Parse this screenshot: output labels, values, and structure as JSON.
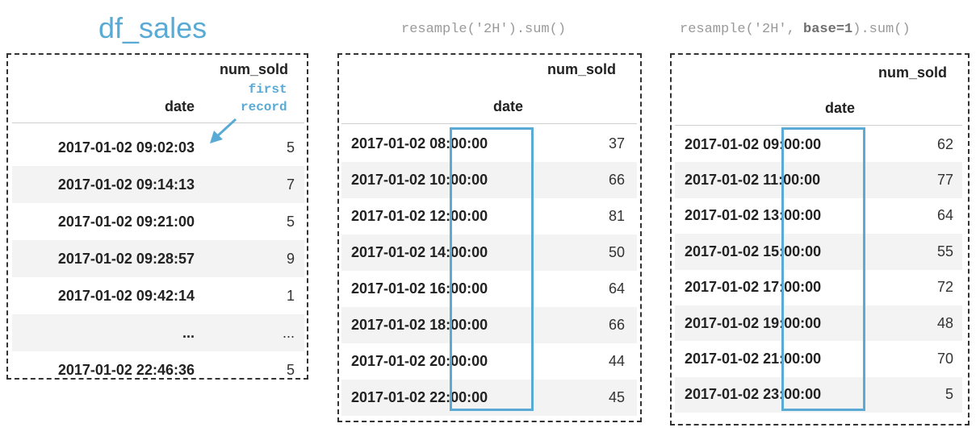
{
  "title": "df_sales",
  "code_left": {
    "prefix": "resample('2H').sum()"
  },
  "code_right": {
    "prefix": "resample('2H', ",
    "keyword": "base=1",
    "suffix": ").sum()"
  },
  "tables": [
    {
      "column_header": "num_sold",
      "index_header": "date",
      "note_lines": [
        "first",
        "record"
      ],
      "rows": [
        {
          "date": "2017-01-02 09:02:03",
          "value": "5"
        },
        {
          "date": "2017-01-02 09:14:13",
          "value": "7"
        },
        {
          "date": "2017-01-02 09:21:00",
          "value": "5"
        },
        {
          "date": "2017-01-02 09:28:57",
          "value": "9"
        },
        {
          "date": "2017-01-02 09:42:14",
          "value": "1"
        },
        {
          "date": "...",
          "value": "..."
        },
        {
          "date": "2017-01-02 22:46:36",
          "value": "5"
        }
      ]
    },
    {
      "column_header": "num_sold",
      "index_header": "date",
      "rows": [
        {
          "day": "2017-01-02",
          "time": "08:00:00",
          "value": "37"
        },
        {
          "day": "2017-01-02",
          "time": "10:00:00",
          "value": "66"
        },
        {
          "day": "2017-01-02",
          "time": "12:00:00",
          "value": "81"
        },
        {
          "day": "2017-01-02",
          "time": "14:00:00",
          "value": "50"
        },
        {
          "day": "2017-01-02",
          "time": "16:00:00",
          "value": "64"
        },
        {
          "day": "2017-01-02",
          "time": "18:00:00",
          "value": "66"
        },
        {
          "day": "2017-01-02",
          "time": "20:00:00",
          "value": "44"
        },
        {
          "day": "2017-01-02",
          "time": "22:00:00",
          "value": "45"
        }
      ]
    },
    {
      "column_header": "num_sold",
      "index_header": "date",
      "rows": [
        {
          "day": "2017-01-02",
          "time": "09:00:00",
          "value": "62"
        },
        {
          "day": "2017-01-02",
          "time": "11:00:00",
          "value": "77"
        },
        {
          "day": "2017-01-02",
          "time": "13:00:00",
          "value": "64"
        },
        {
          "day": "2017-01-02",
          "time": "15:00:00",
          "value": "55"
        },
        {
          "day": "2017-01-02",
          "time": "17:00:00",
          "value": "72"
        },
        {
          "day": "2017-01-02",
          "time": "19:00:00",
          "value": "48"
        },
        {
          "day": "2017-01-02",
          "time": "21:00:00",
          "value": "70"
        },
        {
          "day": "2017-01-02",
          "time": "23:00:00",
          "value": "5"
        }
      ]
    }
  ],
  "colors": {
    "accent": "#5aaad6",
    "code": "#9a9a9a",
    "stripe": "#f3f3f3",
    "frame": "#333333"
  }
}
